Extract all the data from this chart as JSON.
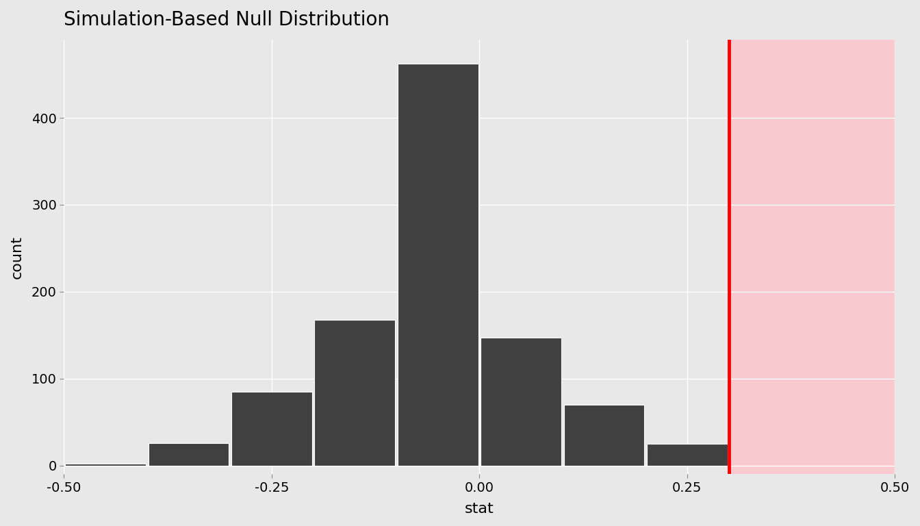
{
  "title": "Simulation-Based Null Distribution",
  "xlabel": "stat",
  "ylabel": "count",
  "xlim": [
    -0.5,
    0.5
  ],
  "ylim": [
    -10,
    490
  ],
  "obs_stat": 0.3,
  "background_color": "#E8E8E8",
  "pink_shade_color": "#F9C9D0",
  "bar_color_normal": "#404040",
  "bar_color_overlap": "#957080",
  "grid_color": "#FFFFFF",
  "bar_edges": [
    -0.5,
    -0.4,
    -0.3,
    -0.2,
    -0.1,
    0.0,
    0.1,
    0.2,
    0.3,
    0.4,
    0.5
  ],
  "bar_heights": [
    2,
    26,
    85,
    168,
    462,
    147,
    70,
    25,
    0,
    0
  ],
  "yticks": [
    0,
    100,
    200,
    300,
    400
  ],
  "xticks": [
    -0.5,
    -0.25,
    0.0,
    0.25,
    0.5
  ],
  "title_fontsize": 20,
  "axis_label_fontsize": 16,
  "tick_fontsize": 14
}
